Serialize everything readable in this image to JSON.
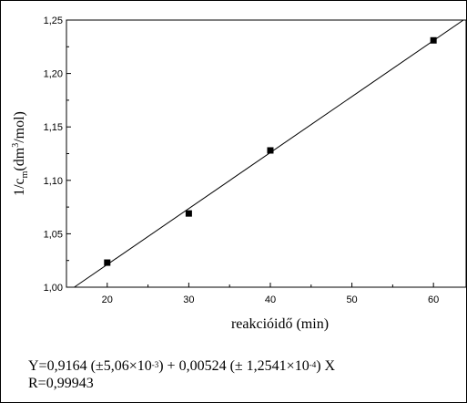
{
  "chart_data": {
    "type": "scatter",
    "x": [
      20,
      30,
      40,
      60
    ],
    "y": [
      1.023,
      1.069,
      1.128,
      1.231
    ],
    "fit_line": {
      "intercept": 0.9164,
      "slope": 0.00524
    },
    "xlabel": "reakcióidő (min)",
    "ylabel_parts": {
      "pre": "1/c",
      "sub": "m",
      "mid": "(dm",
      "sup": "3",
      "post": "/mol)"
    },
    "xlim": [
      15,
      64
    ],
    "ylim": [
      1.0,
      1.25
    ],
    "x_ticks": [
      20,
      30,
      40,
      50,
      60
    ],
    "y_ticks": [
      1.0,
      1.05,
      1.1,
      1.15,
      1.2,
      1.25
    ],
    "x_tick_labels": [
      "20",
      "30",
      "40",
      "50",
      "60"
    ],
    "y_tick_labels": [
      "1,00",
      "1,05",
      "1,10",
      "1,15",
      "1,20",
      "1,25"
    ],
    "grid": false,
    "marker_color": "#000000"
  },
  "equation": {
    "p1": "Y=0,9164 (±5,06×10",
    "e1": "-3",
    "p2": ") + 0,00524 (± 1,2541×10",
    "e2": "-4",
    "p3": ") X",
    "r": "R=0,99943"
  }
}
